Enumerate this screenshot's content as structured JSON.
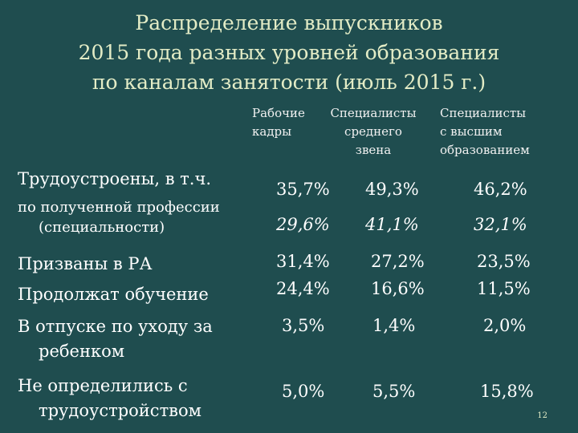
{
  "title_lines": [
    "Распределение выпускников",
    "2015 года разных уровней образования",
    "по каналам занятости (июль 2015 г.)"
  ],
  "columns": [
    {
      "lines": [
        "Рабочие",
        "кадры"
      ]
    },
    {
      "lines": [
        "Специалисты",
        "среднего",
        "звена"
      ]
    },
    {
      "lines": [
        "Специалисты",
        "с высшим",
        "образованием"
      ]
    }
  ],
  "rows": [
    {
      "label_lines": [
        "Трудоустроены, в т.ч."
      ],
      "values": [
        "35,7%",
        "49,3%",
        "46,2%"
      ],
      "italic": false
    },
    {
      "label_lines": [
        "по полученной профессии",
        "(специальности)"
      ],
      "values": [
        "29,6%",
        "41,1%",
        "32,1%"
      ],
      "italic": true
    },
    {
      "label_lines": [
        "Призваны в РА"
      ],
      "values": [
        "31,4%",
        "27,2%",
        "23,5%"
      ],
      "italic": false
    },
    {
      "label_lines": [
        "Продолжат обучение"
      ],
      "values": [
        "24,4%",
        "16,6%",
        "11,5%"
      ],
      "italic": false
    },
    {
      "label_lines": [
        "В отпуске по уходу за",
        "ребенком"
      ],
      "values": [
        "3,5%",
        "1,4%",
        "2,0%"
      ],
      "italic": false
    },
    {
      "label_lines": [
        "Не определились с",
        "трудоустройством"
      ],
      "values": [
        "5,0%",
        "5,5%",
        "15,8%"
      ],
      "italic": false
    }
  ],
  "page_number": "12",
  "colors": {
    "background": "#1f4d4f",
    "title": "#e3ecc6",
    "text": "#ffffff"
  }
}
